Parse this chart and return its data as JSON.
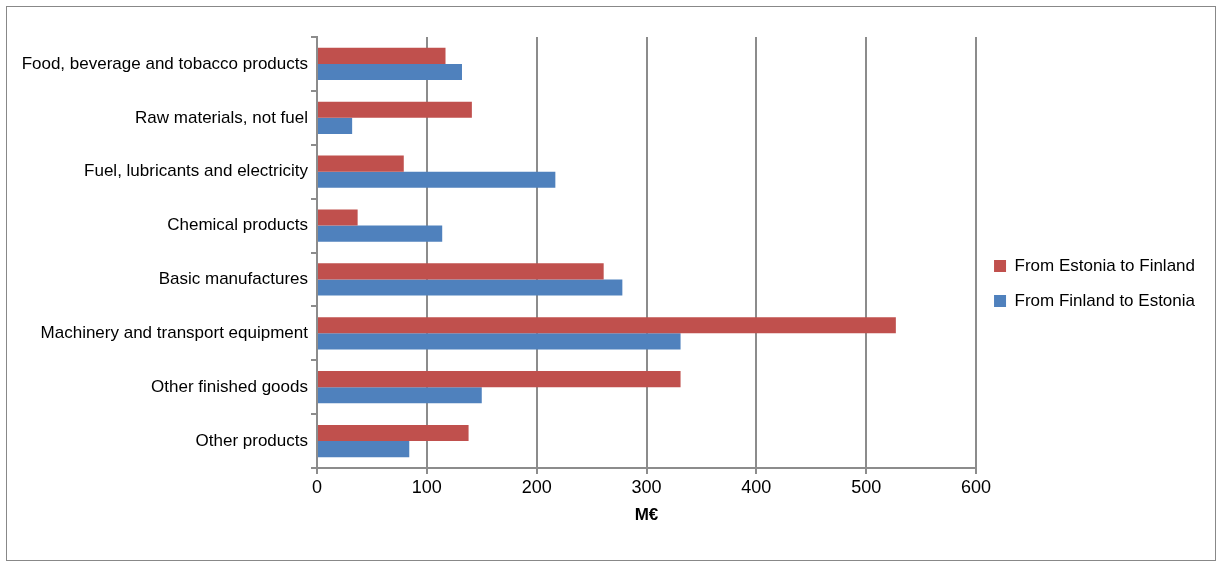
{
  "chart_data": {
    "type": "bar",
    "orientation": "horizontal",
    "xlabel": "M€",
    "categories": [
      "Food, beverage and tobacco products",
      "Raw materials, not fuel",
      "Fuel, lubricants and electricity",
      "Chemical products",
      "Basic manufactures",
      "Machinery and transport equipment",
      "Other finished goods",
      "Other products"
    ],
    "series": [
      {
        "name": "From Estonia to Finland",
        "color": "#c0504d",
        "values": [
          117,
          141,
          79,
          37,
          261,
          527,
          331,
          138
        ]
      },
      {
        "name": "From Finland to Estonia",
        "color": "#4f81bd",
        "values": [
          132,
          32,
          217,
          114,
          278,
          331,
          150,
          84
        ]
      }
    ],
    "xlim": [
      0,
      600
    ],
    "xticks": [
      0,
      100,
      200,
      300,
      400,
      500,
      600
    ],
    "grid": "x",
    "legend": "right"
  }
}
